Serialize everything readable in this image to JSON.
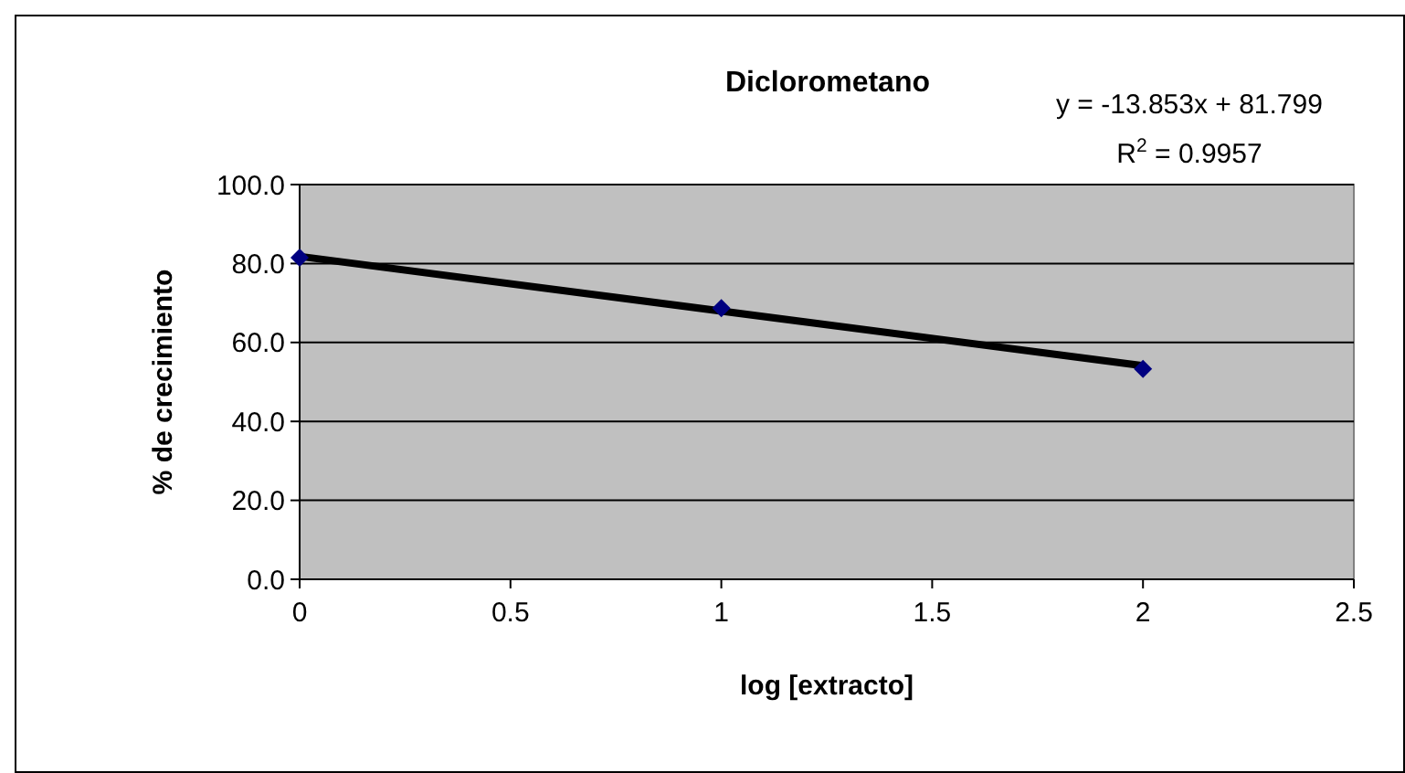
{
  "chart_data": {
    "type": "line",
    "title": "Diclorometano",
    "xlabel": "log [extracto]",
    "ylabel": "% de crecimiento",
    "x": [
      0,
      1,
      2
    ],
    "series": [
      {
        "type": "scatter",
        "color": "#000080",
        "values": [
          81.5,
          68.7,
          53.3
        ],
        "marker": "diamond"
      },
      {
        "color": "#000000",
        "x": [
          0,
          2
        ],
        "values": [
          81.8,
          54.1
        ]
      }
    ],
    "xlim": [
      0,
      2.5
    ],
    "xticks": [
      {
        "value": 0,
        "label": "0"
      },
      {
        "value": 0.5,
        "label": "0.5"
      },
      {
        "value": 1,
        "label": "1"
      },
      {
        "value": 1.5,
        "label": "1.5"
      },
      {
        "value": 2,
        "label": "2"
      },
      {
        "value": 2.5,
        "label": "2.5"
      }
    ],
    "ylim": [
      0,
      100
    ],
    "yticks": [
      {
        "value": 0,
        "label": "0.0"
      },
      {
        "value": 20,
        "label": "20.0"
      },
      {
        "value": 40,
        "label": "40.0"
      },
      {
        "value": 60,
        "label": "60.0"
      },
      {
        "value": 80,
        "label": "80.0"
      },
      {
        "value": 100,
        "label": "100.0"
      }
    ],
    "grid": "y",
    "annotations": [
      "y = -13.853x + 81.799",
      "R$^{2}$ = 0.9957"
    ]
  }
}
